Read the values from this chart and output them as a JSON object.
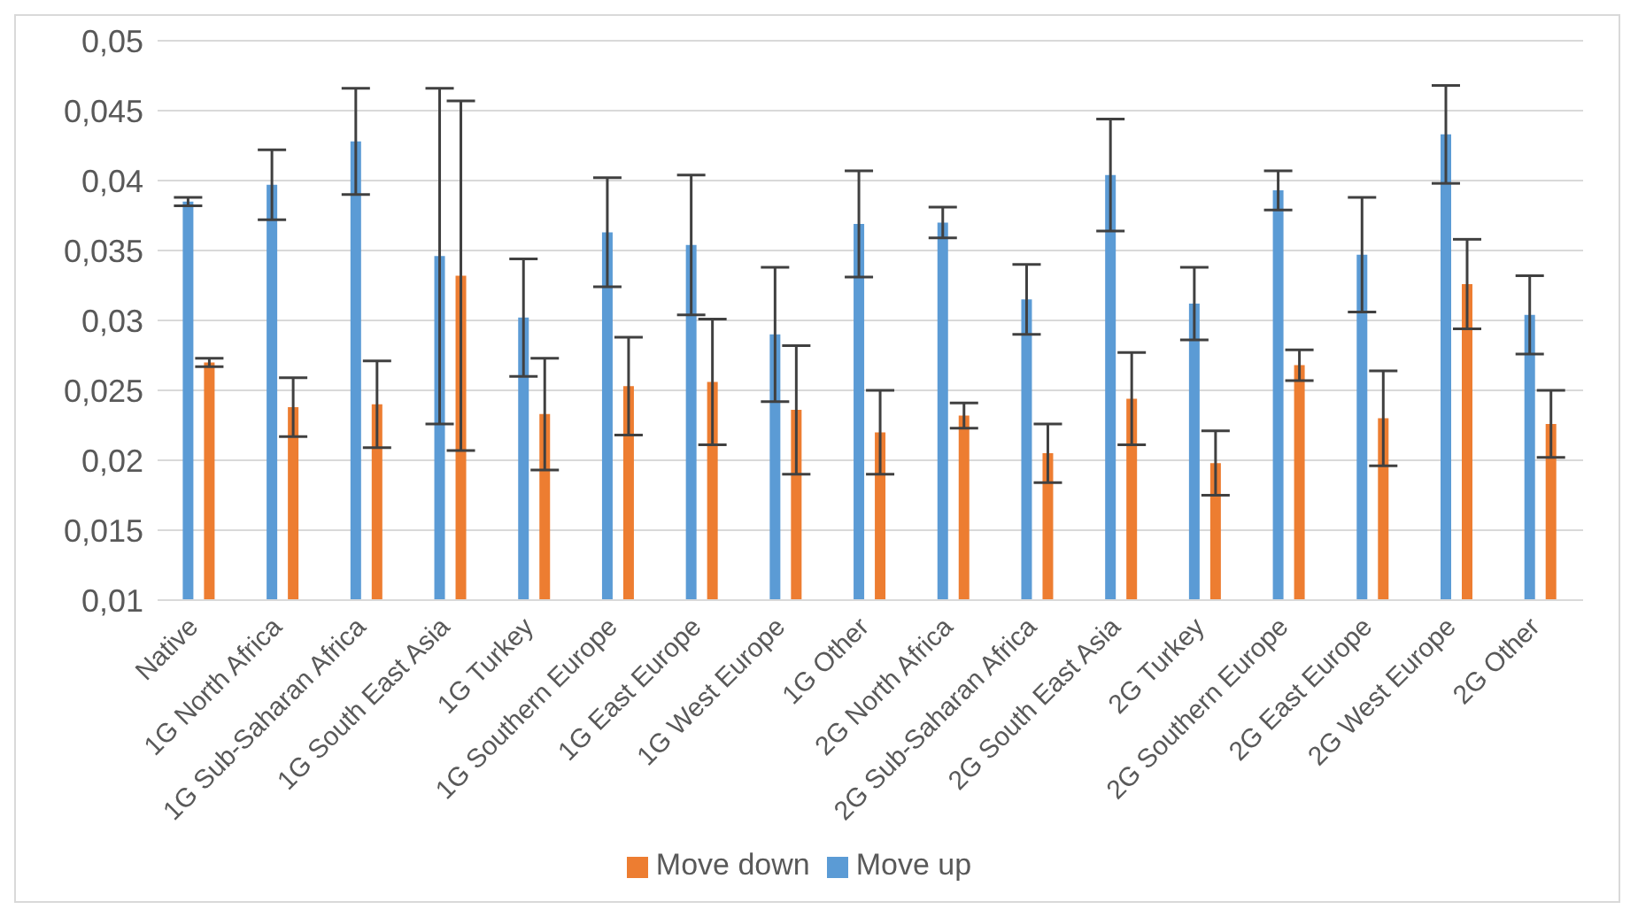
{
  "chart_data": {
    "type": "bar",
    "categories": [
      "Native",
      "1G North Africa",
      "1G Sub-Saharan Africa",
      "1G South East Asia",
      "1G Turkey",
      "1G Southern Europe",
      "1G East Europe",
      "1G West Europe",
      "1G Other",
      "2G North Africa",
      "2G Sub-Saharan Africa",
      "2G South East Asia",
      "2G Turkey",
      "2G Southern Europe",
      "2G East Europe",
      "2G West Europe",
      "2G Other"
    ],
    "series": [
      {
        "name": "Move up",
        "color": "#5b9bd5",
        "values": [
          0.0385,
          0.0397,
          0.0428,
          0.0346,
          0.0302,
          0.0363,
          0.0354,
          0.029,
          0.0369,
          0.037,
          0.0315,
          0.0404,
          0.0312,
          0.0393,
          0.0347,
          0.0433,
          0.0304
        ],
        "errors": [
          0.0003,
          0.0025,
          0.0038,
          0.012,
          0.0042,
          0.0039,
          0.005,
          0.0048,
          0.0038,
          0.0011,
          0.0025,
          0.004,
          0.0026,
          0.0014,
          0.0041,
          0.0035,
          0.0028
        ]
      },
      {
        "name": "Move down",
        "color": "#ed7d31",
        "values": [
          0.027,
          0.0238,
          0.024,
          0.0332,
          0.0233,
          0.0253,
          0.0256,
          0.0236,
          0.022,
          0.0232,
          0.0205,
          0.0244,
          0.0198,
          0.0268,
          0.023,
          0.0326,
          0.0226
        ],
        "errors": [
          0.0003,
          0.0021,
          0.0031,
          0.0125,
          0.004,
          0.0035,
          0.0045,
          0.0046,
          0.003,
          0.0009,
          0.0021,
          0.0033,
          0.0023,
          0.0011,
          0.0034,
          0.0032,
          0.0024
        ]
      }
    ],
    "ylim": [
      0.01,
      0.05
    ],
    "yticks": [
      {
        "value": 0.01,
        "label": "0,01"
      },
      {
        "value": 0.015,
        "label": "0,015"
      },
      {
        "value": 0.02,
        "label": "0,02"
      },
      {
        "value": 0.025,
        "label": "0,025"
      },
      {
        "value": 0.03,
        "label": "0,03"
      },
      {
        "value": 0.035,
        "label": "0,035"
      },
      {
        "value": 0.04,
        "label": "0,04"
      },
      {
        "value": 0.045,
        "label": "0,045"
      },
      {
        "value": 0.05,
        "label": "0,05"
      }
    ],
    "grid": "y",
    "legend": "bottom"
  }
}
